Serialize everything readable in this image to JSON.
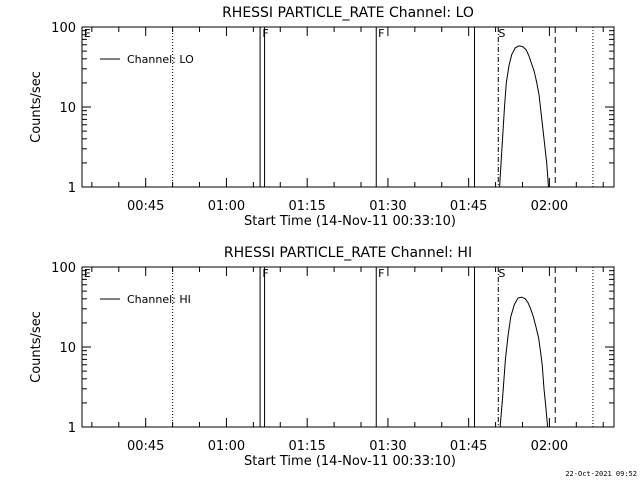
{
  "footer": "22-Oct-2021 09:52",
  "chart_data": [
    {
      "type": "line",
      "title": "RHESSI PARTICLE_RATE Channel: LO",
      "xlabel": "Start Time (14-Nov-11 00:33:10)",
      "ylabel": "Counts/sec",
      "yscale": "log",
      "ylim": [
        1,
        100
      ],
      "y_ticks": [
        "1",
        "10",
        "100"
      ],
      "xlim": [
        "00:33:10",
        "02:12:00"
      ],
      "x_ticks": [
        "00:45",
        "01:00",
        "01:15",
        "01:30",
        "01:45",
        "02:00"
      ],
      "legend": "top-left",
      "series": [
        {
          "name": "Channel: LO",
          "x": [
            "01:50:45",
            "01:51:10",
            "01:51:40",
            "01:52:00",
            "01:52:30",
            "01:53:00",
            "01:53:40",
            "01:54:20",
            "01:55:00",
            "01:55:40",
            "01:56:10",
            "01:56:40",
            "01:57:10",
            "01:57:40",
            "01:58:05",
            "01:58:30",
            "01:59:00",
            "01:59:30",
            "01:59:50"
          ],
          "y": [
            1,
            3,
            10,
            20,
            33,
            45,
            55,
            58,
            57,
            52,
            44,
            35,
            28,
            20,
            14,
            8,
            4,
            2,
            1
          ]
        }
      ],
      "flag_labels": [
        {
          "text": "E",
          "x": "00:33:20"
        },
        {
          "text": "F",
          "x": "01:06:30"
        },
        {
          "text": "F",
          "x": "01:28:00"
        },
        {
          "text": "S",
          "x": "01:50:20"
        }
      ],
      "markers": [
        {
          "x": "00:50:00",
          "style": "dotted"
        },
        {
          "x": "01:06:15",
          "style": "solid"
        },
        {
          "x": "01:07:05",
          "style": "solid"
        },
        {
          "x": "01:27:50",
          "style": "solid"
        },
        {
          "x": "01:46:05",
          "style": "solid"
        },
        {
          "x": "01:50:30",
          "style": "dashdot"
        },
        {
          "x": "02:01:05",
          "style": "dashed"
        },
        {
          "x": "02:08:05",
          "style": "dotted"
        }
      ]
    },
    {
      "type": "line",
      "title": "RHESSI PARTICLE_RATE Channel: HI",
      "xlabel": "Start Time (14-Nov-11 00:33:10)",
      "ylabel": "Counts/sec",
      "yscale": "log",
      "ylim": [
        1,
        100
      ],
      "y_ticks": [
        "1",
        "10",
        "100"
      ],
      "xlim": [
        "00:33:10",
        "02:12:00"
      ],
      "x_ticks": [
        "00:45",
        "01:00",
        "01:15",
        "01:30",
        "01:45",
        "02:00"
      ],
      "legend": "top-left",
      "series": [
        {
          "name": "Channel: HI",
          "x": [
            "01:50:50",
            "01:51:20",
            "01:51:50",
            "01:52:20",
            "01:52:50",
            "01:53:30",
            "01:54:10",
            "01:54:50",
            "01:55:30",
            "01:56:00",
            "01:56:30",
            "01:57:00",
            "01:57:30",
            "01:58:00",
            "01:58:20",
            "01:58:40",
            "01:59:00",
            "01:59:20",
            "01:59:40"
          ],
          "y": [
            1,
            2.5,
            7,
            14,
            24,
            34,
            41,
            42,
            40,
            36,
            30,
            24,
            18,
            13,
            9,
            6,
            3,
            1.8,
            1
          ]
        }
      ],
      "flag_labels": [
        {
          "text": "E",
          "x": "00:33:20"
        },
        {
          "text": "F",
          "x": "01:06:30"
        },
        {
          "text": "F",
          "x": "01:28:00"
        },
        {
          "text": "S",
          "x": "01:50:20"
        }
      ],
      "markers": [
        {
          "x": "00:50:00",
          "style": "dotted"
        },
        {
          "x": "01:06:15",
          "style": "solid"
        },
        {
          "x": "01:07:05",
          "style": "solid"
        },
        {
          "x": "01:27:50",
          "style": "solid"
        },
        {
          "x": "01:46:05",
          "style": "solid"
        },
        {
          "x": "01:50:30",
          "style": "dashdot"
        },
        {
          "x": "02:01:05",
          "style": "dashed"
        },
        {
          "x": "02:08:05",
          "style": "dotted"
        }
      ]
    }
  ]
}
